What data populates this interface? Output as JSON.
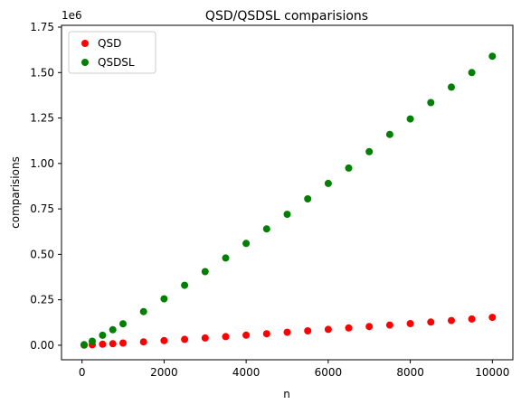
{
  "chart_data": {
    "type": "scatter",
    "title": "QSD/QSDSL comparisions",
    "xlabel": "n",
    "ylabel": "comparisions",
    "y_offset_label": "1e6",
    "xlim": [
      -500,
      10500
    ],
    "ylim": [
      -80000,
      1760000
    ],
    "x_ticks": [
      0,
      2000,
      4000,
      6000,
      8000,
      10000
    ],
    "x_tick_labels": [
      "0",
      "2000",
      "4000",
      "6000",
      "8000",
      "10000"
    ],
    "y_ticks": [
      0,
      250000,
      500000,
      750000,
      1000000,
      1250000,
      1500000,
      1750000
    ],
    "y_tick_labels": [
      "0.00",
      "0.25",
      "0.50",
      "0.75",
      "1.00",
      "1.25",
      "1.50",
      "1.75"
    ],
    "grid": false,
    "legend_position": "top-left",
    "series": [
      {
        "name": "QSD",
        "color": "#ff0000",
        "x": [
          50,
          250,
          500,
          750,
          1000,
          1500,
          2000,
          2500,
          3000,
          3500,
          4000,
          4500,
          5000,
          5500,
          6000,
          6500,
          7000,
          7500,
          8000,
          8500,
          9000,
          9500,
          10000
        ],
        "y": [
          500,
          2500,
          5500,
          8500,
          12000,
          18500,
          25500,
          32500,
          40000,
          47500,
          55500,
          63000,
          71000,
          79000,
          87000,
          95000,
          103000,
          111000,
          119000,
          127500,
          136000,
          144500,
          153000
        ]
      },
      {
        "name": "QSDSL",
        "color": "#008000",
        "x": [
          50,
          250,
          500,
          750,
          1000,
          1500,
          2000,
          2500,
          3000,
          3500,
          4000,
          4500,
          5000,
          5500,
          6000,
          6500,
          7000,
          7500,
          8000,
          8500,
          9000,
          9500,
          10000
        ],
        "y": [
          3000,
          22000,
          55000,
          85000,
          118000,
          185000,
          255000,
          330000,
          405000,
          480000,
          560000,
          640000,
          720000,
          805000,
          890000,
          975000,
          1065000,
          1160000,
          1245000,
          1335000,
          1420000,
          1500000,
          1590000
        ]
      }
    ]
  }
}
